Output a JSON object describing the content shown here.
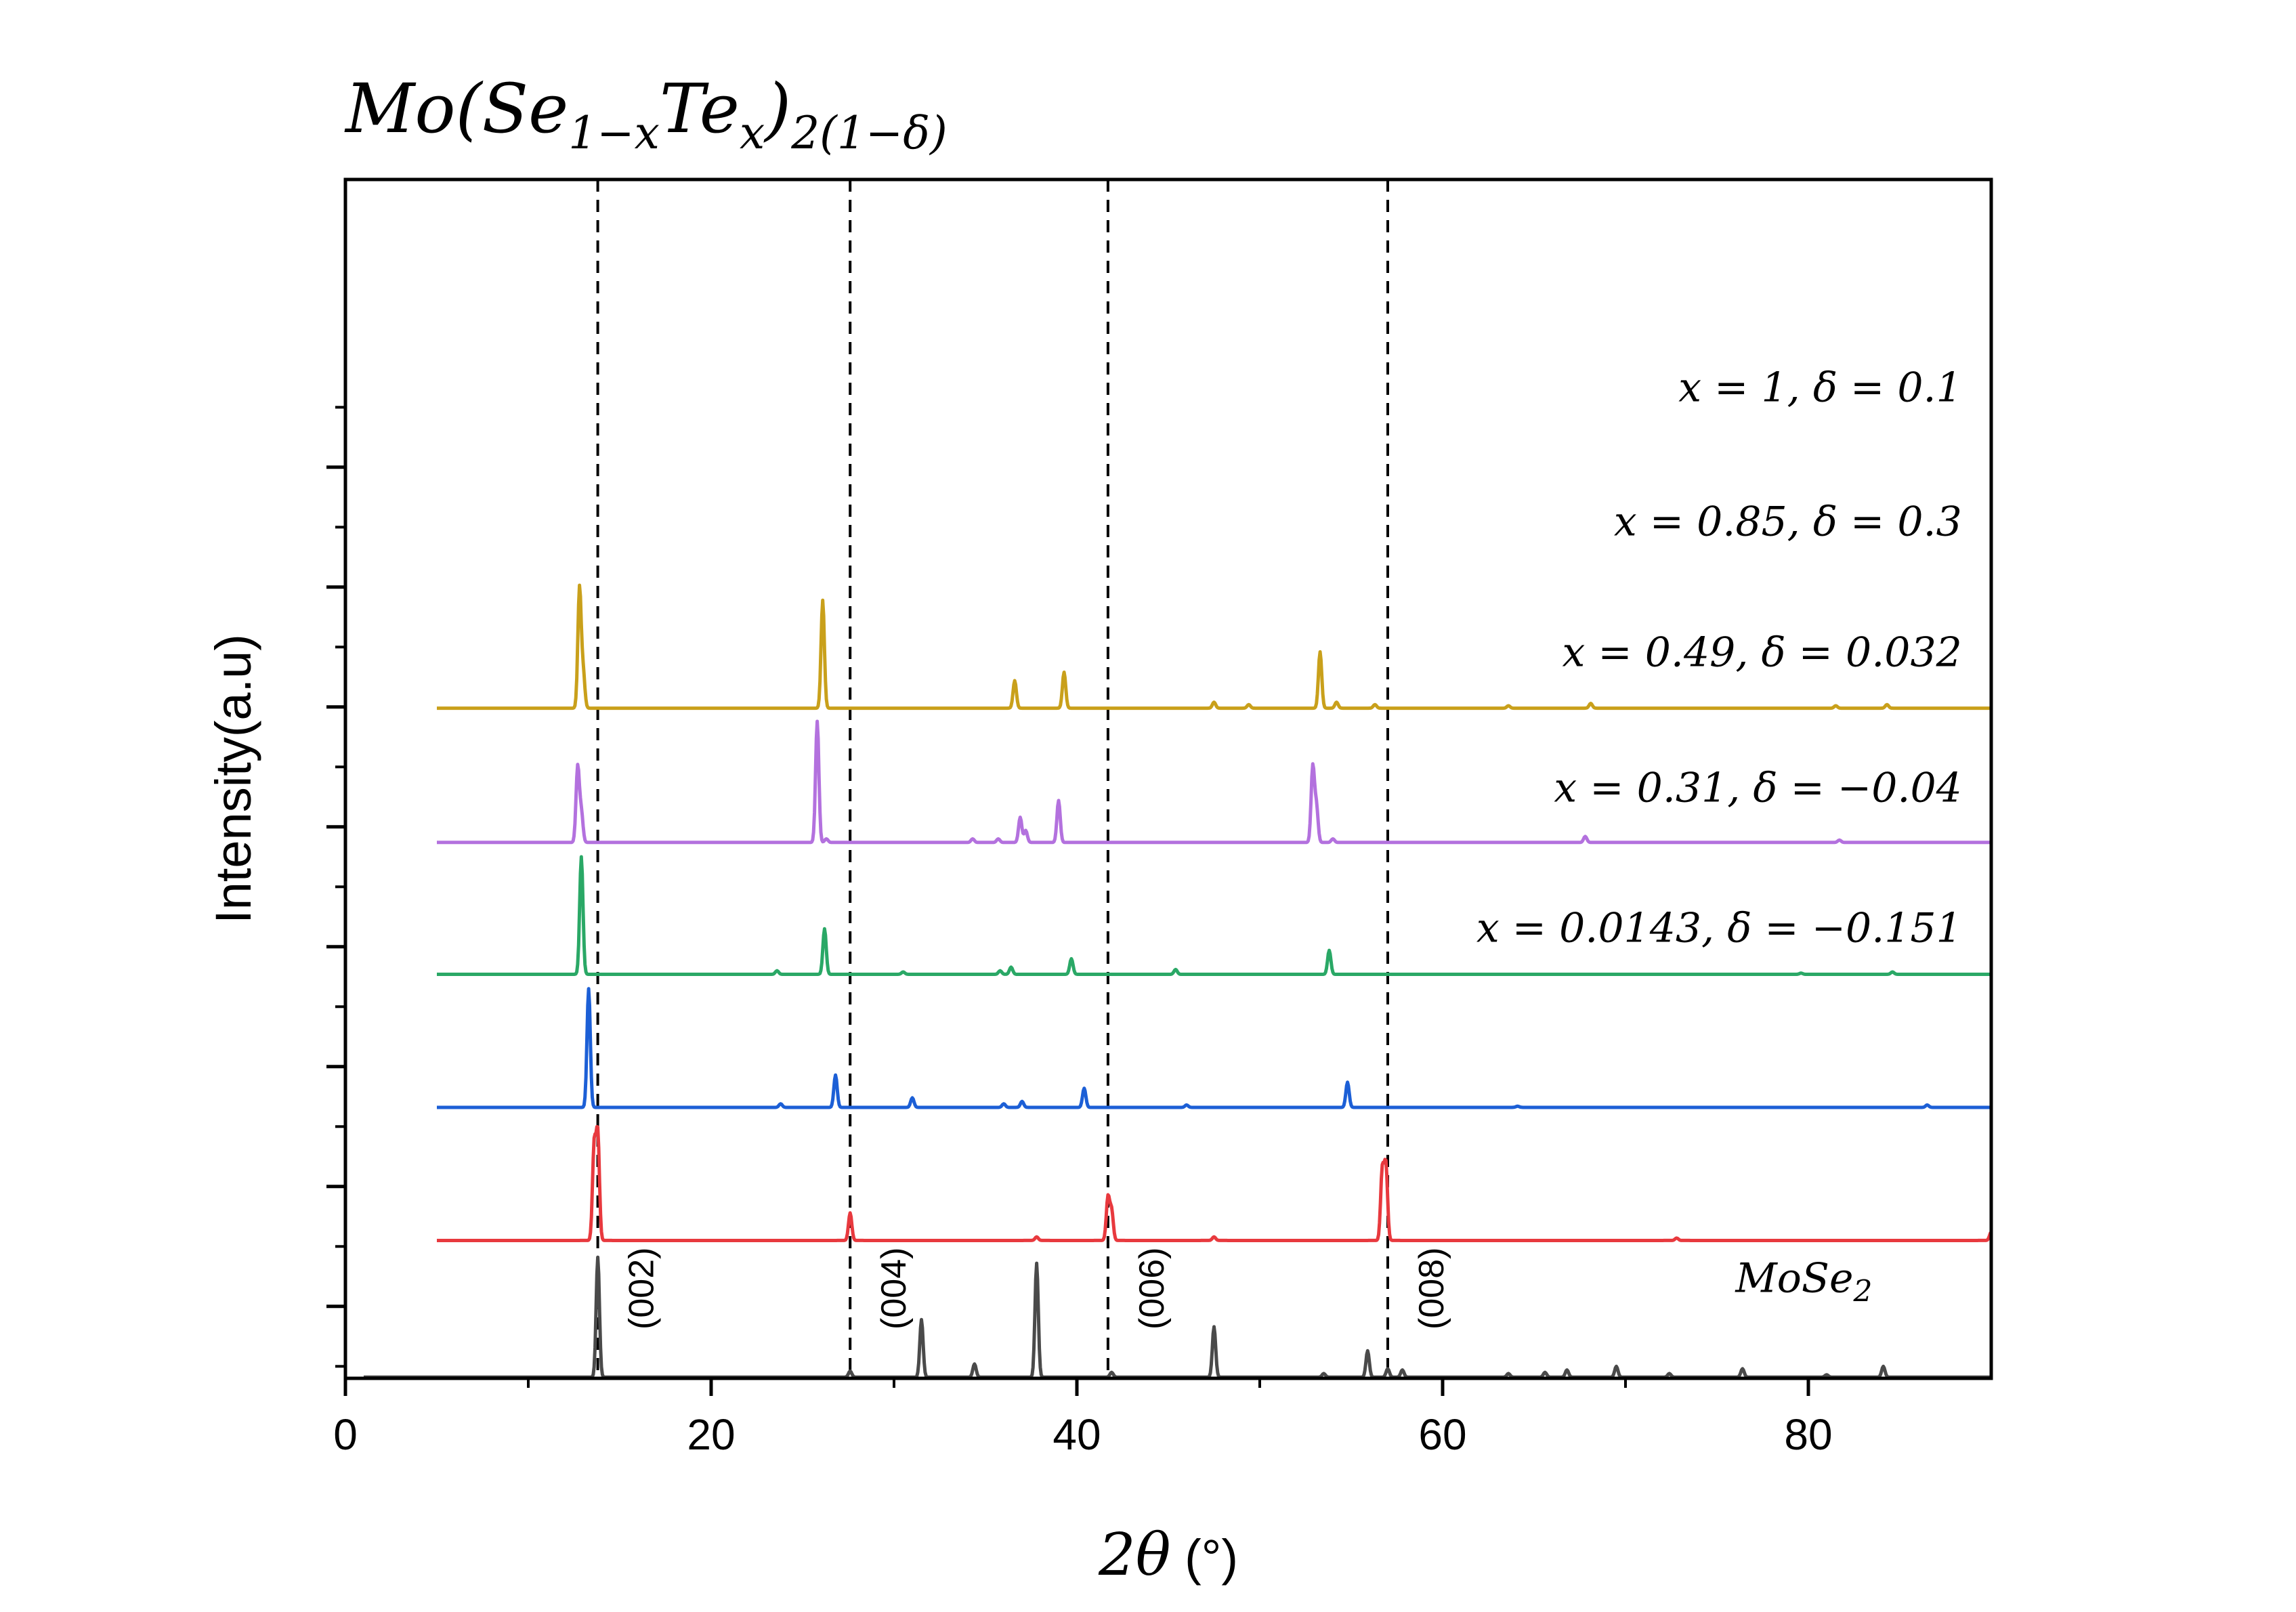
{
  "chart_data": {
    "type": "line",
    "title_main": "Mo(Se",
    "title_sub1": "1−x",
    "title_mid": "Te",
    "title_sub2": "x",
    "title_close": ")",
    "title_sub3": "2(1−δ)",
    "xlabel_main": "2θ",
    "xlabel_unit": " (°)",
    "ylabel": "Intensity(a.u)",
    "xlim": [
      0,
      90
    ],
    "x_ticks": [
      0,
      20,
      40,
      60,
      80
    ],
    "x_tick_labels": [
      "0",
      "20",
      "40",
      "60",
      "80"
    ],
    "ylim": [
      0,
      100
    ],
    "y_major_ticks": [
      6,
      16,
      26,
      36,
      46,
      56,
      66,
      76
    ],
    "y_minor_ticks": [
      1,
      11,
      21,
      31,
      41,
      51,
      61,
      71,
      81
    ],
    "dashed_lines_x": [
      13.8,
      27.6,
      41.7,
      57.0
    ],
    "reference_peaks": [
      {
        "x": 13.8,
        "label": "(002)"
      },
      {
        "x": 27.6,
        "label": "(004)"
      },
      {
        "x": 41.7,
        "label": "(006)"
      },
      {
        "x": 57.0,
        "label": "(008)"
      }
    ],
    "series": [
      {
        "name": "x = 1, δ = 0.1",
        "color": "#c9a01b",
        "x_start": 5,
        "x_end": 90,
        "baseline": 55.9,
        "label_x": 88.4,
        "label_y": 81.5,
        "peaks": [
          [
            12.8,
            10
          ],
          [
            13.0,
            3
          ],
          [
            26.1,
            9
          ],
          [
            36.6,
            2.3
          ],
          [
            39.3,
            3
          ],
          [
            47.5,
            0.5
          ],
          [
            49.4,
            0.3
          ],
          [
            53.3,
            4.7
          ],
          [
            54.2,
            0.5
          ],
          [
            56.3,
            0.3
          ],
          [
            63.6,
            0.2
          ],
          [
            68.1,
            0.4
          ],
          [
            81.5,
            0.2
          ],
          [
            84.3,
            0.3
          ]
        ]
      },
      {
        "name": "x = 0.85, δ = 0.3",
        "color": "#b371de",
        "x_start": 5,
        "x_end": 90,
        "baseline": 44.7,
        "label_x": 88.4,
        "label_y": 70.3,
        "peaks": [
          [
            12.7,
            6.3
          ],
          [
            12.9,
            2.5
          ],
          [
            25.8,
            10.1
          ],
          [
            26.3,
            0.3
          ],
          [
            34.3,
            0.3
          ],
          [
            35.7,
            0.3
          ],
          [
            36.9,
            2.1
          ],
          [
            37.2,
            1
          ],
          [
            39.0,
            3.5
          ],
          [
            52.9,
            6.3
          ],
          [
            53.1,
            3
          ],
          [
            54.0,
            0.3
          ],
          [
            67.8,
            0.5
          ],
          [
            81.7,
            0.2
          ]
        ]
      },
      {
        "name": "x = 0.49, δ = 0.032",
        "color": "#2aa866",
        "x_start": 5,
        "x_end": 90,
        "baseline": 33.7,
        "label_x": 88.4,
        "label_y": 59.4,
        "peaks": [
          [
            12.9,
            9.8
          ],
          [
            23.6,
            0.3
          ],
          [
            26.2,
            3.8
          ],
          [
            30.5,
            0.2
          ],
          [
            35.8,
            0.3
          ],
          [
            36.4,
            0.6
          ],
          [
            39.7,
            1.3
          ],
          [
            45.4,
            0.4
          ],
          [
            53.8,
            2
          ],
          [
            79.6,
            0.1
          ],
          [
            84.6,
            0.2
          ]
        ]
      },
      {
        "name": "x = 0.31, δ = −0.04",
        "color": "#1c5fd6",
        "x_start": 5,
        "x_end": 90,
        "baseline": 22.6,
        "label_x": 88.4,
        "label_y": 48.1,
        "peaks": [
          [
            13.3,
            9.9
          ],
          [
            23.8,
            0.3
          ],
          [
            26.8,
            2.7
          ],
          [
            31.0,
            0.8
          ],
          [
            36.0,
            0.3
          ],
          [
            37.0,
            0.5
          ],
          [
            40.4,
            1.6
          ],
          [
            46.0,
            0.2
          ],
          [
            54.8,
            2.1
          ],
          [
            64.1,
            0.1
          ],
          [
            86.5,
            0.2
          ]
        ]
      },
      {
        "name": "x = 0.0143, δ = −0.151",
        "color": "#e8393e",
        "x_start": 5,
        "x_end": 90,
        "baseline": 11.5,
        "label_x": 88.4,
        "label_y": 36.4,
        "peaks": [
          [
            13.6,
            7.8
          ],
          [
            13.8,
            8.8
          ],
          [
            27.6,
            2.3
          ],
          [
            37.8,
            0.3
          ],
          [
            41.7,
            3.6
          ],
          [
            41.9,
            2.5
          ],
          [
            47.5,
            0.3
          ],
          [
            56.7,
            5.8
          ],
          [
            56.9,
            6.2
          ],
          [
            72.8,
            0.2
          ],
          [
            90,
            0.7
          ]
        ]
      },
      {
        "name": "MoSe",
        "name_sub": "2",
        "color": "#4a4a4a",
        "x_start": 1,
        "x_end": 90,
        "baseline": 0.1,
        "label_x": 83.5,
        "label_y": 7.2,
        "peaks": [
          [
            13.8,
            10
          ],
          [
            27.6,
            0.5
          ],
          [
            31.5,
            4.8
          ],
          [
            34.4,
            1.1
          ],
          [
            37.8,
            9.5
          ],
          [
            41.9,
            0.4
          ],
          [
            47.5,
            4.2
          ],
          [
            53.5,
            0.3
          ],
          [
            55.9,
            2.2
          ],
          [
            57.0,
            0.7
          ],
          [
            57.8,
            0.6
          ],
          [
            63.6,
            0.3
          ],
          [
            65.6,
            0.4
          ],
          [
            66.8,
            0.6
          ],
          [
            69.5,
            0.9
          ],
          [
            72.4,
            0.3
          ],
          [
            76.4,
            0.7
          ],
          [
            81.0,
            0.2
          ],
          [
            84.1,
            0.9
          ]
        ]
      }
    ]
  }
}
